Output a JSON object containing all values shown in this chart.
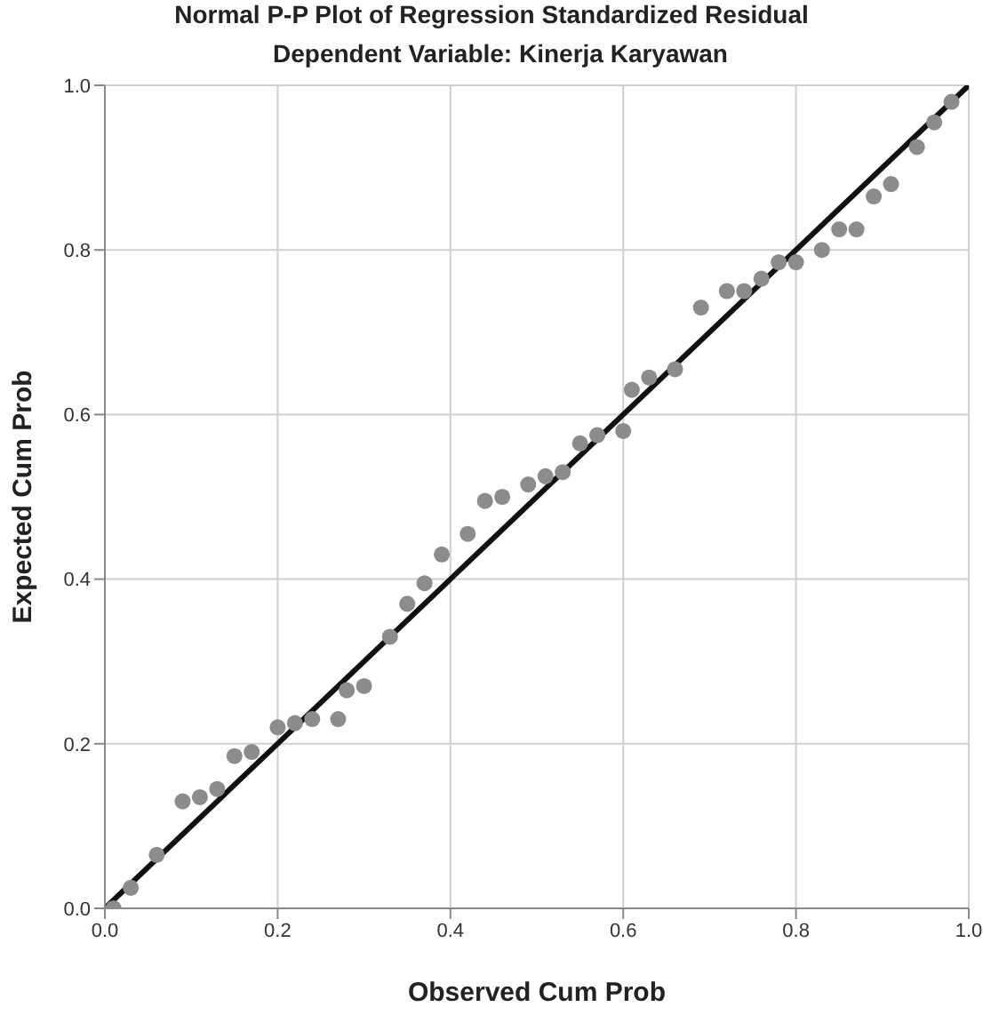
{
  "chart_data": {
    "type": "scatter",
    "title": "Normal P-P Plot of Regression Standardized Residual",
    "subtitle": "Dependent Variable: Kinerja Karyawan",
    "xlabel": "Observed Cum Prob",
    "ylabel": "Expected Cum Prob",
    "xlim": [
      0,
      1
    ],
    "ylim": [
      0,
      1
    ],
    "xticks": [
      {
        "value": 0,
        "label": "0.0"
      },
      {
        "value": 0.2,
        "label": "0.2"
      },
      {
        "value": 0.4,
        "label": "0.4"
      },
      {
        "value": 0.6,
        "label": "0.6"
      },
      {
        "value": 0.8,
        "label": "0.8"
      },
      {
        "value": 1,
        "label": "1.0"
      }
    ],
    "yticks": [
      {
        "value": 0,
        "label": "0.0"
      },
      {
        "value": 0.2,
        "label": "0.2"
      },
      {
        "value": 0.4,
        "label": "0.4"
      },
      {
        "value": 0.6,
        "label": "0.6"
      },
      {
        "value": 0.8,
        "label": "0.8"
      },
      {
        "value": 1,
        "label": "1.0"
      }
    ],
    "grid": true,
    "series": [
      {
        "marker": "circle",
        "color": "#8c8c8c",
        "x": [
          0.01,
          0.03,
          0.06,
          0.09,
          0.11,
          0.13,
          0.15,
          0.17,
          0.2,
          0.22,
          0.24,
          0.27,
          0.28,
          0.3,
          0.33,
          0.35,
          0.37,
          0.39,
          0.42,
          0.44,
          0.46,
          0.49,
          0.51,
          0.53,
          0.55,
          0.57,
          0.6,
          0.61,
          0.63,
          0.66,
          0.69,
          0.72,
          0.74,
          0.76,
          0.78,
          0.8,
          0.83,
          0.85,
          0.87,
          0.89,
          0.91,
          0.94,
          0.96,
          0.98
        ],
        "values": [
          0.0,
          0.025,
          0.065,
          0.13,
          0.135,
          0.145,
          0.185,
          0.19,
          0.22,
          0.225,
          0.23,
          0.23,
          0.265,
          0.27,
          0.33,
          0.37,
          0.395,
          0.43,
          0.455,
          0.495,
          0.5,
          0.515,
          0.525,
          0.53,
          0.565,
          0.575,
          0.58,
          0.63,
          0.645,
          0.655,
          0.73,
          0.75,
          0.75,
          0.765,
          0.785,
          0.785,
          0.8,
          0.825,
          0.825,
          0.865,
          0.88,
          0.925,
          0.955,
          0.98
        ]
      },
      {
        "type": "line",
        "marker": "none",
        "color": "#111111",
        "x": [
          0,
          1
        ],
        "values": [
          0,
          1
        ]
      }
    ]
  }
}
